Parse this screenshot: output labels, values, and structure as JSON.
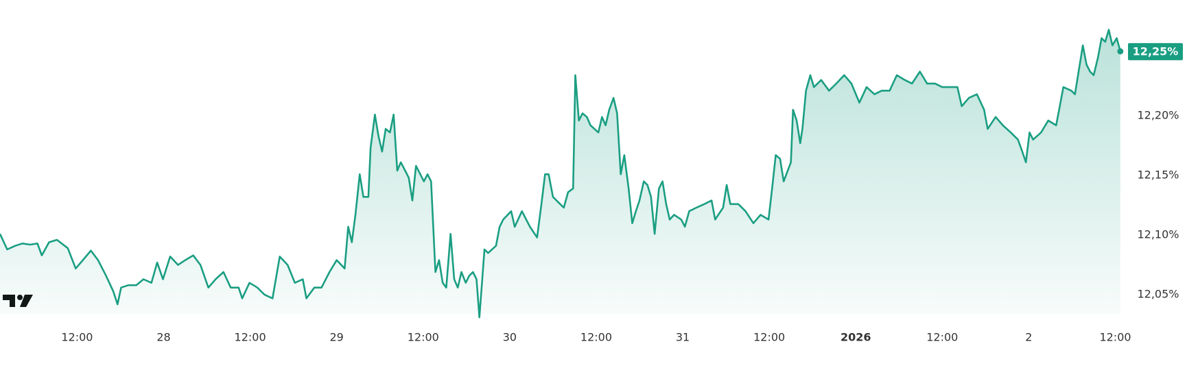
{
  "chart_data": {
    "type": "line",
    "color": "#1a9e82",
    "last_value_label": "12,25%",
    "xlim": [
      1.3,
      157
    ],
    "ylim": [
      12.034,
      12.297
    ],
    "xticks": [
      {
        "value": 12,
        "label": "12:00"
      },
      {
        "value": 24,
        "label": "28"
      },
      {
        "value": 36,
        "label": "12:00"
      },
      {
        "value": 48,
        "label": "29"
      },
      {
        "value": 60,
        "label": "12:00"
      },
      {
        "value": 72,
        "label": "30"
      },
      {
        "value": 84,
        "label": "12:00"
      },
      {
        "value": 96,
        "label": "31"
      },
      {
        "value": 108,
        "label": "12:00"
      },
      {
        "value": 120,
        "label": "2026"
      },
      {
        "value": 132,
        "label": "12:00"
      },
      {
        "value": 144,
        "label": "2"
      },
      {
        "value": 156,
        "label": "12:00"
      }
    ],
    "yticks": [
      {
        "value": 12.05,
        "label": "12,05%"
      },
      {
        "value": 12.1,
        "label": "12,10%"
      },
      {
        "value": 12.15,
        "label": "12,15%"
      },
      {
        "value": 12.2,
        "label": "12,20%"
      }
    ],
    "x": [
      1.3,
      2.3,
      3.4,
      4.4,
      5.5,
      6.5,
      7.1,
      8.1,
      9.2,
      10.7,
      11.8,
      12.8,
      13.9,
      14.9,
      16.0,
      17.0,
      17.6,
      18.1,
      19.1,
      20.2,
      21.2,
      22.3,
      23.1,
      23.9,
      24.9,
      26.0,
      27.0,
      28.1,
      29.1,
      30.2,
      31.2,
      32.3,
      33.3,
      34.4,
      34.9,
      35.9,
      37.0,
      38.0,
      39.1,
      40.1,
      41.2,
      42.2,
      43.3,
      43.8,
      44.9,
      45.9,
      47.0,
      48.0,
      49.1,
      49.6,
      50.1,
      50.6,
      51.2,
      51.7,
      52.4,
      52.7,
      53.3,
      53.8,
      54.3,
      54.8,
      55.4,
      55.9,
      56.4,
      56.9,
      57.5,
      58.0,
      58.5,
      59.0,
      59.6,
      60.1,
      60.6,
      61.1,
      61.7,
      62.2,
      62.7,
      63.2,
      63.8,
      64.3,
      64.8,
      65.3,
      65.9,
      66.4,
      66.9,
      67.4,
      67.8,
      68.5,
      69.0,
      70.1,
      70.6,
      71.1,
      72.2,
      72.7,
      73.7,
      74.8,
      75.8,
      76.4,
      76.9,
      77.4,
      78.0,
      79.0,
      79.5,
      80.1,
      80.8,
      81.1,
      81.6,
      82.1,
      82.7,
      83.2,
      84.3,
      84.8,
      85.3,
      85.8,
      86.4,
      86.9,
      87.4,
      87.9,
      88.5,
      89.0,
      89.5,
      90.0,
      90.6,
      91.1,
      91.6,
      92.1,
      92.7,
      93.2,
      93.7,
      94.2,
      94.8,
      95.8,
      96.3,
      96.9,
      97.9,
      99.0,
      100.0,
      100.5,
      101.6,
      102.1,
      102.6,
      103.7,
      104.7,
      105.8,
      106.8,
      107.9,
      108.4,
      108.9,
      109.5,
      110.0,
      111.0,
      111.3,
      111.8,
      112.3,
      112.6,
      113.1,
      113.7,
      114.2,
      115.2,
      116.3,
      117.3,
      118.4,
      119.4,
      120.5,
      121.5,
      122.6,
      123.6,
      124.7,
      125.7,
      126.8,
      127.8,
      128.9,
      129.9,
      131.0,
      132.0,
      133.1,
      134.1,
      134.7,
      135.7,
      136.8,
      137.8,
      138.3,
      139.4,
      140.4,
      141.5,
      142.5,
      143.1,
      143.6,
      144.1,
      144.6,
      145.7,
      146.7,
      147.8,
      148.3,
      148.8,
      149.9,
      150.4,
      151.5,
      152.0,
      152.5,
      153.0,
      153.6,
      154.1,
      154.6,
      155.1,
      155.6,
      156.2,
      156.7
    ],
    "values": [
      12.101,
      12.088,
      12.091,
      12.093,
      12.092,
      12.093,
      12.083,
      12.094,
      12.096,
      12.089,
      12.072,
      12.079,
      12.087,
      12.079,
      12.066,
      12.053,
      12.042,
      12.056,
      12.058,
      12.058,
      12.063,
      12.06,
      12.077,
      12.063,
      12.082,
      12.075,
      12.079,
      12.083,
      12.075,
      12.056,
      12.063,
      12.069,
      12.056,
      12.056,
      12.047,
      12.06,
      12.056,
      12.05,
      12.047,
      12.082,
      12.075,
      12.06,
      12.063,
      12.047,
      12.056,
      12.056,
      12.069,
      12.079,
      12.072,
      12.107,
      12.094,
      12.117,
      12.151,
      12.132,
      12.132,
      12.173,
      12.201,
      12.183,
      12.17,
      12.189,
      12.186,
      12.201,
      12.154,
      12.161,
      12.154,
      12.148,
      12.129,
      12.158,
      12.151,
      12.145,
      12.151,
      12.145,
      12.069,
      12.079,
      12.06,
      12.056,
      12.101,
      12.063,
      12.056,
      12.069,
      12.06,
      12.066,
      12.069,
      12.063,
      12.031,
      12.088,
      12.085,
      12.091,
      12.107,
      12.113,
      12.12,
      12.107,
      12.12,
      12.107,
      12.098,
      12.126,
      12.151,
      12.151,
      12.132,
      12.126,
      12.123,
      12.136,
      12.139,
      12.234,
      12.196,
      12.202,
      12.199,
      12.192,
      12.186,
      12.199,
      12.192,
      12.205,
      12.215,
      12.202,
      12.151,
      12.167,
      12.139,
      12.11,
      12.12,
      12.129,
      12.145,
      12.142,
      12.132,
      12.101,
      12.139,
      12.145,
      12.126,
      12.113,
      12.117,
      12.113,
      12.107,
      12.12,
      12.123,
      12.126,
      12.129,
      12.113,
      12.123,
      12.142,
      12.126,
      12.126,
      12.12,
      12.11,
      12.117,
      12.113,
      12.139,
      12.167,
      12.164,
      12.145,
      12.161,
      12.205,
      12.196,
      12.177,
      12.189,
      12.221,
      12.234,
      12.224,
      12.23,
      12.221,
      12.227,
      12.234,
      12.227,
      12.211,
      12.224,
      12.218,
      12.221,
      12.221,
      12.234,
      12.23,
      12.227,
      12.237,
      12.227,
      12.227,
      12.224,
      12.224,
      12.224,
      12.208,
      12.215,
      12.218,
      12.205,
      12.189,
      12.199,
      12.192,
      12.186,
      12.18,
      12.17,
      12.161,
      12.186,
      12.18,
      12.186,
      12.196,
      12.192,
      12.208,
      12.224,
      12.221,
      12.218,
      12.259,
      12.243,
      12.237,
      12.234,
      12.249,
      12.265,
      12.262,
      12.272,
      12.259,
      12.265,
      12.254
    ]
  }
}
